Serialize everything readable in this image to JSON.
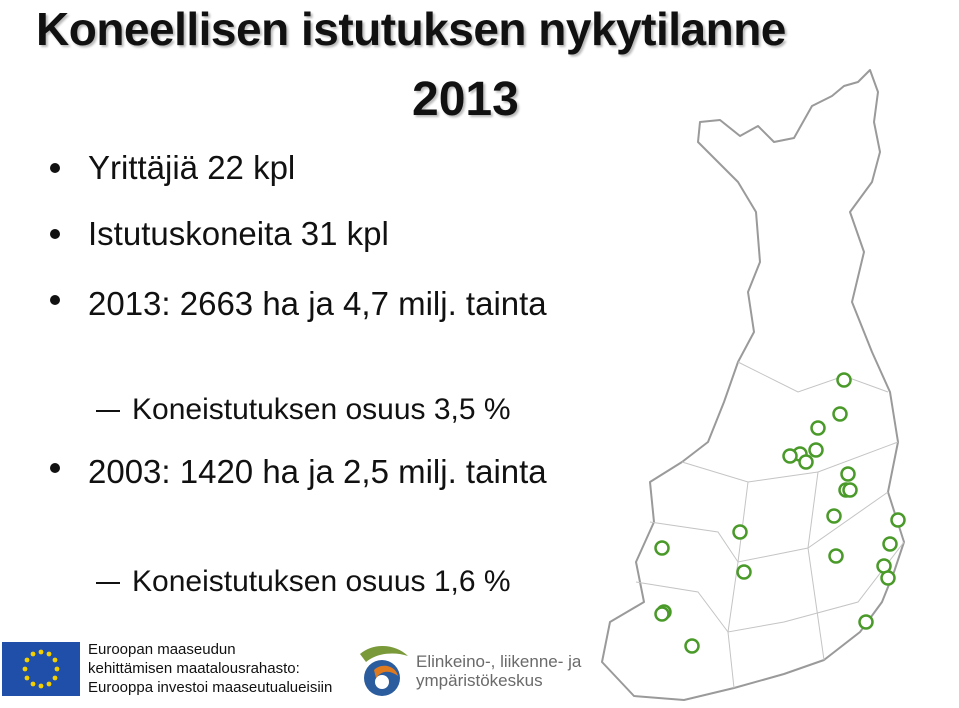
{
  "slide": {
    "title": "Koneellisen istutuksen nykytilanne",
    "year": "2013"
  },
  "bullets": [
    {
      "text": "Yrittäjiä 22 kpl"
    },
    {
      "text": "Istutuskoneita 31 kpl"
    },
    {
      "text": "2013: 2663 ha ja 4,7 milj. tainta"
    },
    {
      "text": "2003: 1420 ha ja 2,5 milj. tainta"
    }
  ],
  "sub_items": [
    {
      "text": "Koneistutuksen osuus 3,5 %"
    },
    {
      "text": "Koneistutuksen osuus 1,6 %"
    }
  ],
  "footer": {
    "eu_line1": "Euroopan maaseudun",
    "eu_line2": "kehittämisen maatalousrahasto:",
    "eu_line3": "Eurooppa investoi maaseutualueisiin",
    "ely_line1": "Elinkeino-, liikenne- ja",
    "ely_line2": "ympäristökeskus"
  },
  "colors": {
    "marker": "#4a9a2a",
    "eu_blue": "#1f4fa8",
    "eu_star": "#f5d000",
    "map_line": "#9a9a9a"
  },
  "icons": {
    "map": "finland-map",
    "marker": "location-circle-icon",
    "eu": "eu-flag-icon",
    "ely": "ely-logo-icon"
  }
}
